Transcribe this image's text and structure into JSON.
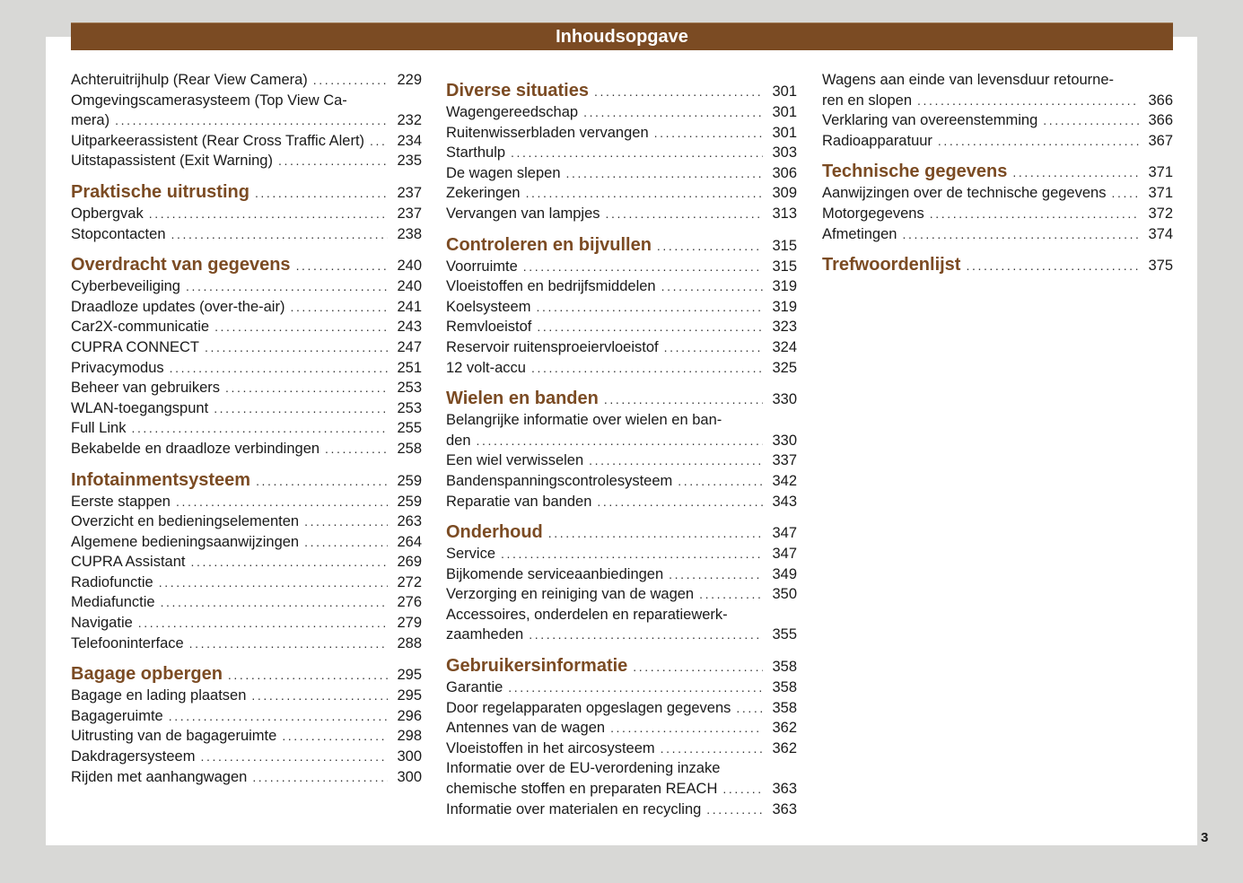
{
  "header": {
    "title": "Inhoudsopgave"
  },
  "page_number": "3",
  "colors": {
    "accent": "#7b4b23"
  },
  "columns": [
    [
      {
        "type": "i",
        "lines": [
          "Achteruitrijhulp (Rear View Camera)"
        ],
        "page": "229"
      },
      {
        "type": "i",
        "lines": [
          "Omgevingscamerasysteem (Top View Ca-",
          "mera)"
        ],
        "page": "232"
      },
      {
        "type": "i",
        "lines": [
          "Uitparkeerassistent (Rear Cross Traffic Alert)"
        ],
        "page": "234"
      },
      {
        "type": "i",
        "lines": [
          "Uitstapassistent (Exit Warning)"
        ],
        "page": "235"
      },
      {
        "type": "h",
        "lines": [
          "Praktische uitrusting"
        ],
        "page": "237"
      },
      {
        "type": "i",
        "lines": [
          "Opbergvak"
        ],
        "page": "237"
      },
      {
        "type": "i",
        "lines": [
          "Stopcontacten"
        ],
        "page": "238"
      },
      {
        "type": "h",
        "lines": [
          "Overdracht van gegevens"
        ],
        "page": "240"
      },
      {
        "type": "i",
        "lines": [
          "Cyberbeveiliging"
        ],
        "page": "240"
      },
      {
        "type": "i",
        "lines": [
          "Draadloze updates (over-the-air)"
        ],
        "page": "241"
      },
      {
        "type": "i",
        "lines": [
          "Car2X-communicatie"
        ],
        "page": "243"
      },
      {
        "type": "i",
        "lines": [
          "CUPRA CONNECT"
        ],
        "page": "247"
      },
      {
        "type": "i",
        "lines": [
          "Privacymodus"
        ],
        "page": "251"
      },
      {
        "type": "i",
        "lines": [
          "Beheer van gebruikers"
        ],
        "page": "253"
      },
      {
        "type": "i",
        "lines": [
          "WLAN-toegangspunt"
        ],
        "page": "253"
      },
      {
        "type": "i",
        "lines": [
          "Full Link"
        ],
        "page": "255"
      },
      {
        "type": "i",
        "lines": [
          "Bekabelde en draadloze verbindingen"
        ],
        "page": "258"
      },
      {
        "type": "h",
        "lines": [
          "Infotainmentsysteem"
        ],
        "page": "259"
      },
      {
        "type": "i",
        "lines": [
          "Eerste stappen"
        ],
        "page": "259"
      },
      {
        "type": "i",
        "lines": [
          "Overzicht en bedieningselementen"
        ],
        "page": "263"
      },
      {
        "type": "i",
        "lines": [
          "Algemene bedieningsaanwijzingen"
        ],
        "page": "264"
      },
      {
        "type": "i",
        "lines": [
          "CUPRA Assistant"
        ],
        "page": "269"
      },
      {
        "type": "i",
        "lines": [
          "Radiofunctie"
        ],
        "page": "272"
      },
      {
        "type": "i",
        "lines": [
          "Mediafunctie"
        ],
        "page": "276"
      },
      {
        "type": "i",
        "lines": [
          "Navigatie"
        ],
        "page": "279"
      },
      {
        "type": "i",
        "lines": [
          "Telefooninterface"
        ],
        "page": "288"
      },
      {
        "type": "h",
        "lines": [
          "Bagage opbergen"
        ],
        "page": "295"
      },
      {
        "type": "i",
        "lines": [
          "Bagage en lading plaatsen"
        ],
        "page": "295"
      },
      {
        "type": "i",
        "lines": [
          "Bagageruimte"
        ],
        "page": "296"
      },
      {
        "type": "i",
        "lines": [
          "Uitrusting van de bagageruimte"
        ],
        "page": "298"
      },
      {
        "type": "i",
        "lines": [
          "Dakdragersysteem"
        ],
        "page": "300"
      },
      {
        "type": "i",
        "lines": [
          "Rijden met aanhangwagen"
        ],
        "page": "300"
      }
    ],
    [
      {
        "type": "h",
        "lines": [
          "Diverse situaties"
        ],
        "page": "301"
      },
      {
        "type": "i",
        "lines": [
          "Wagengereedschap"
        ],
        "page": "301"
      },
      {
        "type": "i",
        "lines": [
          "Ruitenwisserbladen vervangen"
        ],
        "page": "301"
      },
      {
        "type": "i",
        "lines": [
          "Starthulp"
        ],
        "page": "303"
      },
      {
        "type": "i",
        "lines": [
          "De wagen slepen"
        ],
        "page": "306"
      },
      {
        "type": "i",
        "lines": [
          "Zekeringen"
        ],
        "page": "309"
      },
      {
        "type": "i",
        "lines": [
          "Vervangen van lampjes"
        ],
        "page": "313"
      },
      {
        "type": "h",
        "lines": [
          "Controleren en bijvullen"
        ],
        "page": "315"
      },
      {
        "type": "i",
        "lines": [
          "Voorruimte"
        ],
        "page": "315"
      },
      {
        "type": "i",
        "lines": [
          "Vloeistoffen en bedrijfsmiddelen"
        ],
        "page": "319"
      },
      {
        "type": "i",
        "lines": [
          "Koelsysteem"
        ],
        "page": "319"
      },
      {
        "type": "i",
        "lines": [
          "Remvloeistof"
        ],
        "page": "323"
      },
      {
        "type": "i",
        "lines": [
          "Reservoir ruitensproeiervloeistof"
        ],
        "page": "324"
      },
      {
        "type": "i",
        "lines": [
          "12 volt-accu"
        ],
        "page": "325"
      },
      {
        "type": "h",
        "lines": [
          "Wielen en banden"
        ],
        "page": "330"
      },
      {
        "type": "i",
        "lines": [
          "Belangrijke informatie over wielen en ban-",
          "den"
        ],
        "page": "330"
      },
      {
        "type": "i",
        "lines": [
          "Een wiel verwisselen"
        ],
        "page": "337"
      },
      {
        "type": "i",
        "lines": [
          "Bandenspanningscontrolesysteem"
        ],
        "page": "342"
      },
      {
        "type": "i",
        "lines": [
          "Reparatie van banden"
        ],
        "page": "343"
      },
      {
        "type": "h",
        "lines": [
          "Onderhoud"
        ],
        "page": "347"
      },
      {
        "type": "i",
        "lines": [
          "Service"
        ],
        "page": "347"
      },
      {
        "type": "i",
        "lines": [
          "Bijkomende serviceaanbiedingen"
        ],
        "page": "349"
      },
      {
        "type": "i",
        "lines": [
          "Verzorging en reiniging van de wagen"
        ],
        "page": "350"
      },
      {
        "type": "i",
        "lines": [
          "Accessoires, onderdelen en reparatiewerk-",
          "zaamheden"
        ],
        "page": "355"
      },
      {
        "type": "h",
        "lines": [
          "Gebruikersinformatie"
        ],
        "page": "358"
      },
      {
        "type": "i",
        "lines": [
          "Garantie"
        ],
        "page": "358"
      },
      {
        "type": "i",
        "lines": [
          "Door regelapparaten opgeslagen gegevens"
        ],
        "page": "358"
      },
      {
        "type": "i",
        "lines": [
          "Antennes van de wagen"
        ],
        "page": "362"
      },
      {
        "type": "i",
        "lines": [
          "Vloeistoffen in het aircosysteem"
        ],
        "page": "362"
      },
      {
        "type": "i",
        "lines": [
          "Informatie over de EU-verordening inzake",
          "chemische stoffen en preparaten REACH"
        ],
        "page": "363"
      },
      {
        "type": "i",
        "lines": [
          "Informatie over materialen en recycling"
        ],
        "page": "363"
      }
    ],
    [
      {
        "type": "i",
        "lines": [
          "Wagens aan einde van levensduur retourne-",
          "ren en slopen"
        ],
        "page": "366"
      },
      {
        "type": "i",
        "lines": [
          "Verklaring van overeenstemming"
        ],
        "page": "366"
      },
      {
        "type": "i",
        "lines": [
          "Radioapparatuur"
        ],
        "page": "367"
      },
      {
        "type": "h",
        "lines": [
          "Technische gegevens"
        ],
        "page": "371"
      },
      {
        "type": "i",
        "lines": [
          "Aanwijzingen over de technische gegevens"
        ],
        "page": "371"
      },
      {
        "type": "i",
        "lines": [
          "Motorgegevens"
        ],
        "page": "372"
      },
      {
        "type": "i",
        "lines": [
          "Afmetingen"
        ],
        "page": "374"
      },
      {
        "type": "h",
        "lines": [
          "Trefwoordenlijst"
        ],
        "page": "375"
      }
    ]
  ]
}
